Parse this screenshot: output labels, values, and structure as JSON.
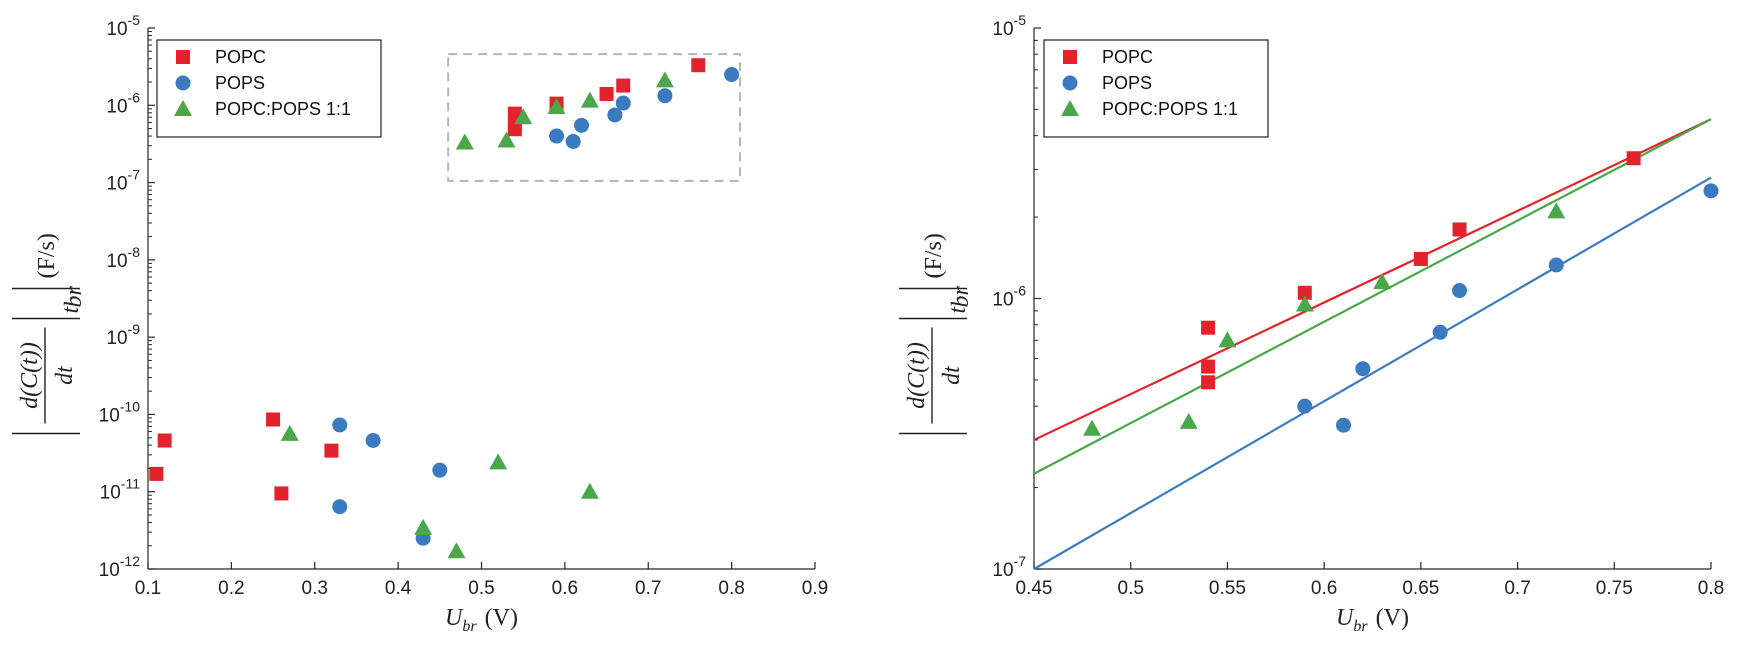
{
  "colors": {
    "POPC": "#e3232b",
    "POPS": "#3a7bbf",
    "POPC:POPS 1:1": "#4aa84a",
    "box": "#b5b5b5",
    "axis": "#262626"
  },
  "icons": {
    "POPC": "square-marker",
    "POPS": "circle-marker",
    "POPC:POPS 1:1": "triangle-marker"
  },
  "axis_text": {
    "x_var": "U",
    "x_sub": "br",
    "x_unit": "(V)",
    "y_num": "d(C(t))",
    "y_den": "dt",
    "y_sub": "t",
    "y_subsub": "br",
    "y_unit": "(F/s)"
  },
  "chart_data": [
    {
      "type": "scatter",
      "yscale": "log",
      "xlim": [
        0.1,
        0.9
      ],
      "ylim": [
        1e-12,
        1e-05
      ],
      "xticks": [
        0.1,
        0.2,
        0.3,
        0.4,
        0.5,
        0.6,
        0.7,
        0.8,
        0.9
      ],
      "xtick_labels": [
        "0.1",
        "0.2",
        "0.3",
        "0.4",
        "0.5",
        "0.6",
        "0.7",
        "0.8",
        "0.9"
      ],
      "yticks": [
        {
          "base": "10",
          "exp": "-12"
        },
        {
          "base": "10",
          "exp": "-11"
        },
        {
          "base": "10",
          "exp": "-10"
        },
        {
          "base": "10",
          "exp": "-9"
        },
        {
          "base": "10",
          "exp": "-8"
        },
        {
          "base": "10",
          "exp": "-7"
        },
        {
          "base": "10",
          "exp": "-6"
        },
        {
          "base": "10",
          "exp": "-5"
        }
      ],
      "xlabel": "U_br (V)",
      "ylabel": "|d(C(t))/dt|_t_br| (F/s)",
      "legend": "top-left",
      "inset_box": {
        "x": [
          0.46,
          0.81
        ],
        "y": [
          1.05e-07,
          4.6e-06
        ]
      },
      "series": [
        {
          "name": "POPC",
          "marker": "square",
          "x": [
            0.11,
            0.12,
            0.25,
            0.26,
            0.32,
            0.54,
            0.54,
            0.54,
            0.59,
            0.65,
            0.67,
            0.76
          ],
          "y": [
            1.7e-11,
            4.6e-11,
            8.6e-11,
            9.5e-12,
            3.4e-11,
            7.8e-07,
            5.6e-07,
            4.9e-07,
            1.05e-06,
            1.4e-06,
            1.8e-06,
            3.3e-06
          ]
        },
        {
          "name": "POPS",
          "marker": "circle",
          "x": [
            0.33,
            0.33,
            0.37,
            0.43,
            0.45,
            0.59,
            0.61,
            0.62,
            0.66,
            0.67,
            0.72,
            0.8
          ],
          "y": [
            7.3e-11,
            6.4e-12,
            4.6e-11,
            2.5e-12,
            1.9e-11,
            4e-07,
            3.4e-07,
            5.5e-07,
            7.5e-07,
            1.07e-06,
            1.33e-06,
            2.5e-06
          ]
        },
        {
          "name": "POPC:POPS 1:1",
          "marker": "triangle",
          "x": [
            0.27,
            0.43,
            0.47,
            0.52,
            0.63,
            0.48,
            0.53,
            0.55,
            0.59,
            0.63,
            0.72
          ],
          "y": [
            5.6e-11,
            3.4e-12,
            1.7e-12,
            2.4e-11,
            1e-11,
            3.3e-07,
            3.5e-07,
            7e-07,
            9.5e-07,
            1.15e-06,
            2.1e-06
          ]
        }
      ]
    },
    {
      "type": "scatter",
      "yscale": "log",
      "xlim": [
        0.45,
        0.8
      ],
      "ylim": [
        1e-07,
        1e-05
      ],
      "xticks": [
        0.45,
        0.5,
        0.55,
        0.6,
        0.65,
        0.7,
        0.75,
        0.8
      ],
      "xtick_labels": [
        "0.45",
        "0.5",
        "0.55",
        "0.6",
        "0.65",
        "0.7",
        "0.75",
        "0.8"
      ],
      "yticks": [
        {
          "base": "10",
          "exp": "-7"
        },
        {
          "base": "10",
          "exp": "-6"
        },
        {
          "base": "10",
          "exp": "-5"
        }
      ],
      "xlabel": "U_br (V)",
      "ylabel": "|d(C(t))/dt|_t_br| (F/s)",
      "legend": "top-left",
      "series": [
        {
          "name": "POPC",
          "marker": "square",
          "x": [
            0.54,
            0.54,
            0.54,
            0.59,
            0.65,
            0.67,
            0.76
          ],
          "y": [
            7.8e-07,
            5.6e-07,
            4.9e-07,
            1.05e-06,
            1.4e-06,
            1.8e-06,
            3.3e-06
          ],
          "fit": {
            "x": [
              0.45,
              0.8
            ],
            "y": [
              3e-07,
              4.6e-06
            ]
          }
        },
        {
          "name": "POPS",
          "marker": "circle",
          "x": [
            0.59,
            0.61,
            0.62,
            0.66,
            0.67,
            0.72,
            0.8
          ],
          "y": [
            4e-07,
            3.4e-07,
            5.5e-07,
            7.5e-07,
            1.07e-06,
            1.33e-06,
            2.5e-06
          ],
          "fit": {
            "x": [
              0.45,
              0.8
            ],
            "y": [
              1e-07,
              2.8e-06
            ]
          }
        },
        {
          "name": "POPC:POPS 1:1",
          "marker": "triangle",
          "x": [
            0.48,
            0.53,
            0.55,
            0.59,
            0.63,
            0.72
          ],
          "y": [
            3.3e-07,
            3.5e-07,
            7e-07,
            9.5e-07,
            1.15e-06,
            2.1e-06
          ],
          "fit": {
            "x": [
              0.45,
              0.8
            ],
            "y": [
              2.25e-07,
              4.6e-06
            ]
          }
        }
      ]
    }
  ]
}
